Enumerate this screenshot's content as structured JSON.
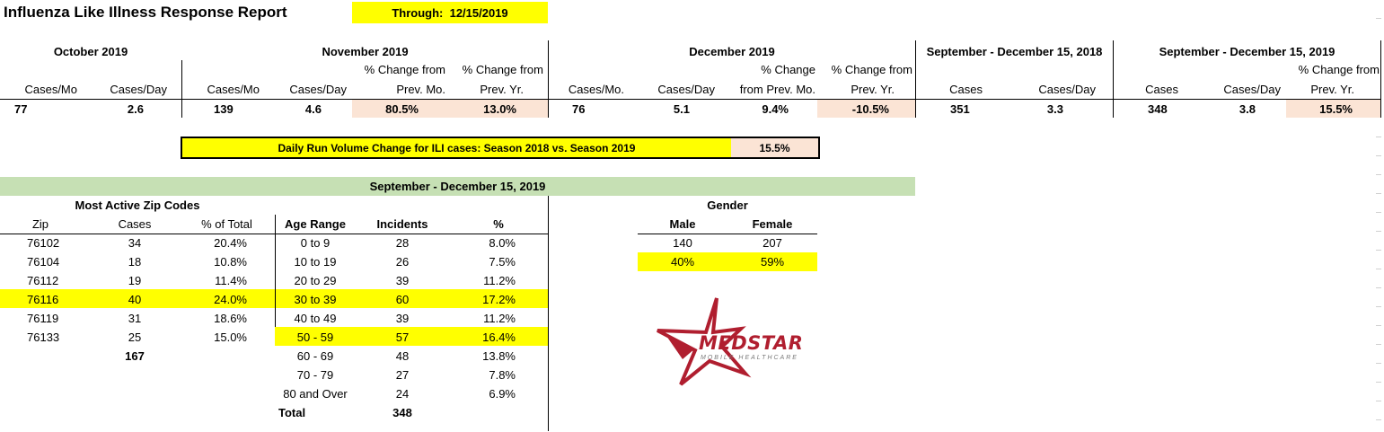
{
  "report": {
    "title": "Influenza Like Illness Response Report",
    "through_label": "Through:",
    "through_date": "12/15/2019"
  },
  "monthly": {
    "oct": {
      "header": "October 2019",
      "cases_label": "Cases/Mo",
      "day_label": "Cases/Day",
      "cases": "77",
      "per_day": "2.6"
    },
    "nov": {
      "header": "November 2019",
      "cases_label": "Cases/Mo",
      "day_label": "Cases/Day",
      "pct_mo_l1": "% Change from",
      "pct_mo_l2": "Prev. Mo.",
      "pct_yr_l1": "% Change from",
      "pct_yr_l2": "Prev. Yr.",
      "cases": "139",
      "per_day": "4.6",
      "pct_mo": "80.5%",
      "pct_yr": "13.0%"
    },
    "dec": {
      "header": "December 2019",
      "cases_label": "Cases/Mo.",
      "day_label": "Cases/Day",
      "pct_mo_l1": "% Change",
      "pct_mo_l2": "from Prev. Mo.",
      "pct_yr_l1": "% Change from",
      "pct_yr_l2": "Prev. Yr.",
      "cases": "76",
      "per_day": "5.1",
      "pct_mo": "9.4%",
      "pct_yr": "-10.5%"
    },
    "season2018": {
      "header": "September - December 15, 2018",
      "cases_label": "Cases",
      "day_label": "Cases/Day",
      "cases": "351",
      "per_day": "3.3"
    },
    "season2019": {
      "header": "September - December 15, 2019",
      "cases_label": "Cases",
      "day_label": "Cases/Day",
      "pct_yr_l1": "% Change from",
      "pct_yr_l2": "Prev. Yr.",
      "cases": "348",
      "per_day": "3.8",
      "pct_yr": "15.5%"
    }
  },
  "run_volume": {
    "label": "Daily Run Volume Change for ILI cases: Season 2018 vs. Season 2019",
    "value": "15.5%"
  },
  "period_header": "September - December 15, 2019",
  "zip": {
    "title": "Most Active Zip Codes",
    "headers": [
      "Zip",
      "Cases",
      "% of Total"
    ],
    "rows": [
      [
        "76102",
        "34",
        "20.4%"
      ],
      [
        "76104",
        "18",
        "10.8%"
      ],
      [
        "76112",
        "19",
        "11.4%"
      ],
      [
        "76116",
        "40",
        "24.0%"
      ],
      [
        "76119",
        "31",
        "18.6%"
      ],
      [
        "76133",
        "25",
        "15.0%"
      ]
    ],
    "total": "167"
  },
  "age": {
    "headers": [
      "Age Range",
      "Incidents",
      "%"
    ],
    "rows": [
      [
        "0 to 9",
        "28",
        "8.0%"
      ],
      [
        "10 to 19",
        "26",
        "7.5%"
      ],
      [
        "20 to 29",
        "39",
        "11.2%"
      ],
      [
        "30 to 39",
        "60",
        "17.2%"
      ],
      [
        "40 to 49",
        "39",
        "11.2%"
      ],
      [
        "50 - 59",
        "57",
        "16.4%"
      ],
      [
        "60 - 69",
        "48",
        "13.8%"
      ],
      [
        "70 - 79",
        "27",
        "7.8%"
      ],
      [
        "80 and Over",
        "24",
        "6.9%"
      ]
    ],
    "total_label": "Total",
    "total": "348"
  },
  "gender": {
    "title": "Gender",
    "male_label": "Male",
    "female_label": "Female",
    "male_count": "140",
    "female_count": "207",
    "male_pct": "40%",
    "female_pct": "59%"
  },
  "logo": {
    "name": "MEDSTAR",
    "tagline": "MOBILE HEALTHCARE"
  },
  "colors": {
    "highlight_yellow": "#ffff00",
    "highlight_peach": "#fbe4d5",
    "band_green": "#c6e0b4",
    "logo_red": "#b01e2f"
  }
}
